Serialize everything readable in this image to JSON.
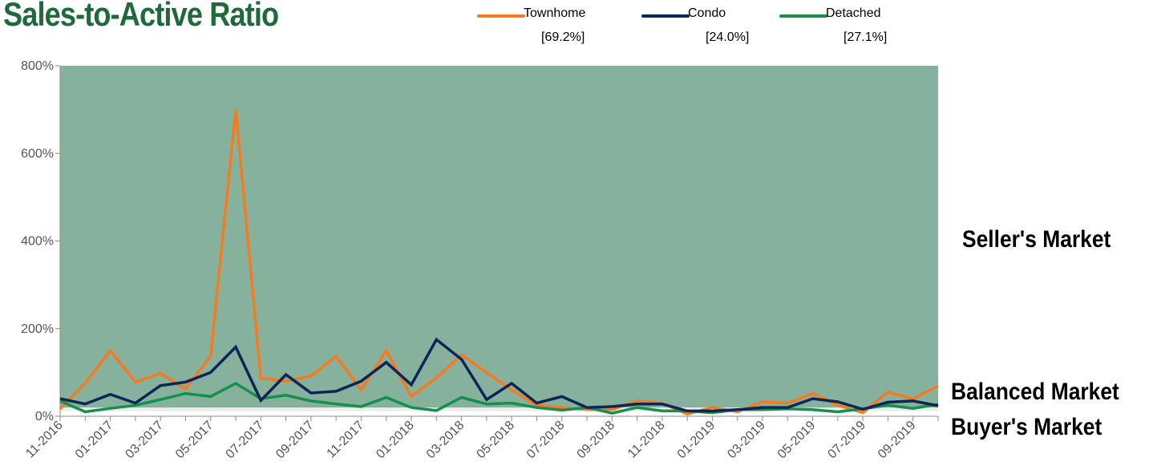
{
  "title": "Sales-to-Active Ratio",
  "zones": {
    "seller": "Seller's Market",
    "balanced": "Balanced Market",
    "buyer": "Buyer's Market"
  },
  "colors": {
    "background_fill": "#85b19d",
    "balanced_band": "#e8eee9",
    "townhome": "#f47b20",
    "condo": "#0f2557",
    "detached": "#16904d",
    "title": "#1e6a3a"
  },
  "chart_data": {
    "type": "line",
    "title": "Sales-to-Active Ratio",
    "ylim": [
      0,
      800
    ],
    "yticks": [
      "0%",
      "200%",
      "400%",
      "600%",
      "800%"
    ],
    "x": [
      "11-2016",
      "12-2016",
      "01-2017",
      "02-2017",
      "03-2017",
      "04-2017",
      "05-2017",
      "06-2017",
      "07-2017",
      "08-2017",
      "09-2017",
      "10-2017",
      "11-2017",
      "12-2017",
      "01-2018",
      "02-2018",
      "03-2018",
      "04-2018",
      "05-2018",
      "06-2018",
      "07-2018",
      "08-2018",
      "09-2018",
      "10-2018",
      "11-2018",
      "12-2018",
      "01-2019",
      "02-2019",
      "03-2019",
      "04-2019",
      "05-2019",
      "06-2019",
      "07-2019",
      "08-2019",
      "09-2019",
      "10-2019"
    ],
    "xtick_labels": [
      "11-2016",
      "01-2017",
      "03-2017",
      "05-2017",
      "07-2017",
      "09-2017",
      "11-2017",
      "01-2018",
      "03-2018",
      "05-2018",
      "07-2018",
      "09-2018",
      "11-2018",
      "01-2019",
      "03-2019",
      "05-2019",
      "07-2019",
      "09-2019"
    ],
    "balanced_range": [
      12,
      20
    ],
    "series": [
      {
        "name": "Townhome",
        "summary": "[69.2%]",
        "color": "#f47b20",
        "values": [
          17,
          75,
          150,
          78,
          98,
          62,
          137,
          700,
          87,
          80,
          92,
          137,
          60,
          150,
          45,
          88,
          140,
          100,
          60,
          25,
          20,
          15,
          15,
          35,
          30,
          5,
          20,
          10,
          33,
          30,
          52,
          25,
          8,
          55,
          40,
          69.2
        ]
      },
      {
        "name": "Condo",
        "summary": "[24.0%]",
        "color": "#0f2557",
        "values": [
          40,
          28,
          50,
          30,
          70,
          78,
          100,
          158,
          36,
          95,
          53,
          57,
          80,
          123,
          72,
          175,
          130,
          38,
          75,
          30,
          45,
          20,
          22,
          28,
          28,
          12,
          12,
          15,
          20,
          20,
          40,
          33,
          16,
          32,
          35,
          24
        ]
      },
      {
        "name": "Detached",
        "summary": "[27.1%]",
        "color": "#16904d",
        "values": [
          35,
          10,
          18,
          25,
          38,
          52,
          45,
          75,
          40,
          48,
          35,
          28,
          22,
          43,
          20,
          13,
          43,
          28,
          30,
          20,
          14,
          20,
          7,
          20,
          12,
          12,
          8,
          15,
          15,
          17,
          15,
          10,
          17,
          25,
          18,
          27.1
        ]
      }
    ]
  }
}
